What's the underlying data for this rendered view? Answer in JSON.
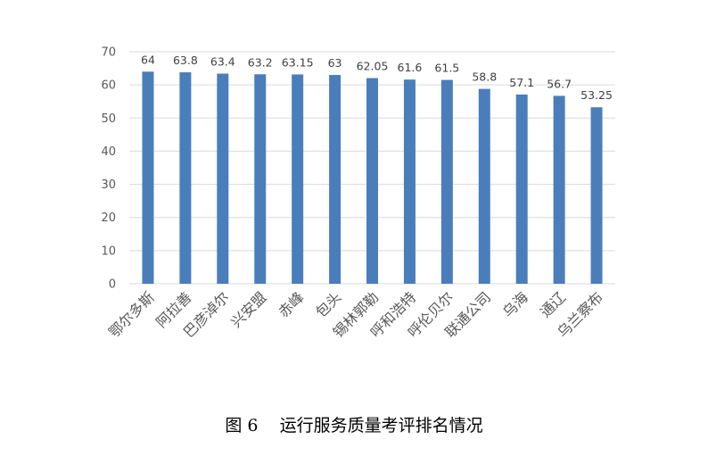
{
  "caption": "图 6    运行服务质量考评排名情况",
  "chart_data": {
    "type": "bar",
    "categories": [
      "鄂尔多斯",
      "阿拉善",
      "巴彦淖尔",
      "兴安盟",
      "赤峰",
      "包头",
      "锡林郭勒",
      "呼和浩特",
      "呼伦贝尔",
      "联通公司",
      "乌海",
      "通辽",
      "乌兰察布"
    ],
    "values": [
      64,
      63.8,
      63.4,
      63.2,
      63.15,
      63,
      62.05,
      61.6,
      61.5,
      58.8,
      57.1,
      56.7,
      53.25
    ],
    "value_labels": [
      "64",
      "63.8",
      "63.4",
      "63.2",
      "63.15",
      "63",
      "62.05",
      "61.6",
      "61.5",
      "58.8",
      "57.1",
      "56.7",
      "53.25"
    ],
    "yticks": [
      "0",
      "10",
      "20",
      "30",
      "40",
      "50",
      "60",
      "70"
    ],
    "ylim": [
      0,
      70
    ],
    "bar_color": "#4a7ebb",
    "grid": true,
    "grid_color": "#d9d9d9",
    "legend": false
  }
}
